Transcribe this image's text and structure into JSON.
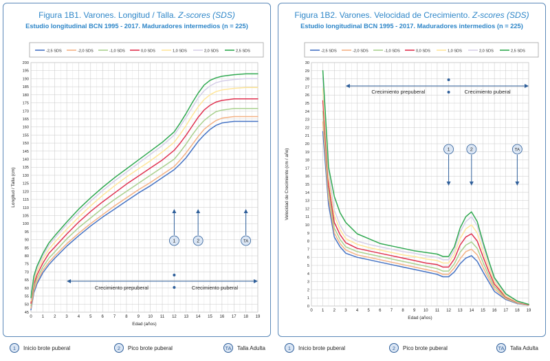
{
  "footer": {
    "items": [
      {
        "badge": "1",
        "label": "Inicio brote puberal"
      },
      {
        "badge": "2",
        "label": "Pico brote puberal"
      },
      {
        "badge": "TA",
        "label": "Talla Adulta"
      }
    ]
  },
  "chart_data": [
    {
      "type": "line",
      "title_prefix": "Figura 1B1. Varones. Longitud / Talla.",
      "title_italic": "Z-scores (SDS)",
      "subtitle_prefix": "Estudio longitudinal BCN 1995 - 2017. Maduradores intermedios (",
      "subtitle_bold": "n = 225",
      "subtitle_suffix": ")",
      "xlabel": "Edad (años)",
      "ylabel": "Longitud / Talla (cm)",
      "xlim": [
        0,
        19
      ],
      "ylim": [
        45,
        200
      ],
      "xticks": [
        0,
        1,
        2,
        3,
        4,
        5,
        6,
        7,
        8,
        9,
        10,
        11,
        12,
        13,
        14,
        15,
        16,
        17,
        18,
        19
      ],
      "yticks": [
        45,
        50,
        55,
        60,
        65,
        70,
        75,
        80,
        85,
        90,
        95,
        100,
        105,
        110,
        115,
        120,
        125,
        130,
        135,
        140,
        145,
        150,
        155,
        160,
        165,
        170,
        175,
        180,
        185,
        190,
        195,
        200
      ],
      "grid": true,
      "legend_position": "top",
      "x": [
        0,
        0.25,
        0.5,
        1,
        1.5,
        2,
        3,
        4,
        5,
        6,
        7,
        8,
        9,
        10,
        11,
        12,
        12.5,
        13,
        13.5,
        14,
        14.5,
        15,
        15.5,
        16,
        17,
        18,
        19
      ],
      "series": [
        {
          "name": "-2,5 SDS",
          "color": "#4472c4",
          "values": [
            46.5,
            57,
            62.5,
            69.5,
            74.5,
            78.5,
            86,
            92.5,
            98.5,
            104,
            109,
            114,
            119,
            123.5,
            128.5,
            133.5,
            137,
            141,
            146,
            151,
            155,
            158.5,
            161,
            162.5,
            163.5,
            163.5,
            163.5
          ]
        },
        {
          "name": "-2,0 SDS",
          "color": "#f4b183",
          "values": [
            47.5,
            58.5,
            64,
            71,
            76,
            80,
            87.5,
            94,
            100,
            105.5,
            111,
            116,
            121,
            125.5,
            130.5,
            135.5,
            139.5,
            144,
            149,
            154,
            158.5,
            161.5,
            164,
            165.5,
            166.5,
            166.5,
            166.5
          ]
        },
        {
          "name": "-1,0 SDS",
          "color": "#a9d18e",
          "values": [
            49,
            60.5,
            66,
            73,
            78.5,
            82.5,
            90.5,
            97.5,
            103.5,
            109.5,
            115,
            120,
            125,
            130,
            135,
            140,
            144.5,
            149.5,
            155,
            160,
            164,
            167,
            169.5,
            170.5,
            171.5,
            171.5,
            171.5
          ]
        },
        {
          "name": "0,0 SDS",
          "color": "#e0304e",
          "values": [
            50.5,
            62.5,
            68,
            75.5,
            81.5,
            85.5,
            93.5,
            101,
            107.5,
            113.5,
            119,
            124.5,
            129.5,
            134.5,
            139.5,
            145.5,
            150,
            155,
            160.5,
            166,
            170.5,
            173.5,
            175.5,
            176.5,
            177.5,
            177.5,
            177.5
          ]
        },
        {
          "name": "1,0 SDS",
          "color": "#ffe699",
          "values": [
            52,
            64.5,
            70,
            78,
            84,
            88.5,
            96.5,
            104,
            111,
            117.5,
            123.5,
            129,
            134,
            139,
            144.5,
            150.5,
            155.5,
            161,
            167,
            172.5,
            177,
            180,
            182,
            183,
            184,
            184.5,
            184.5
          ]
        },
        {
          "name": "2,0 SDS",
          "color": "#d6cfe8",
          "values": [
            53,
            66,
            72,
            80,
            86.5,
            91,
            99.5,
            107,
            114,
            120.5,
            126.5,
            132,
            137.5,
            143,
            148.5,
            155,
            160.5,
            166,
            172,
            178,
            182.5,
            185.5,
            187.5,
            188.5,
            189.5,
            190,
            190
          ]
        },
        {
          "name": "2,5 SDS",
          "color": "#2ea84f",
          "values": [
            54,
            67.5,
            73.5,
            81.5,
            88,
            92.5,
            101,
            109,
            116,
            122.5,
            128.5,
            134,
            139.5,
            145,
            150.5,
            157,
            162.5,
            168.5,
            175,
            181,
            186,
            189,
            190.5,
            191.5,
            192.5,
            193,
            193
          ]
        }
      ],
      "growth_phases": {
        "prepuberal": "Crecimiento prepuberal",
        "puberal": "Crecimiento puberal"
      },
      "markers": [
        {
          "label": "1",
          "x": 12
        },
        {
          "label": "2",
          "x": 14
        },
        {
          "label": "TA",
          "x": 18
        }
      ]
    },
    {
      "type": "line",
      "title_prefix": "Figura 1B2. Varones. Velocidad de Crecimiento.",
      "title_italic": "Z-scores (SDS)",
      "subtitle_prefix": "Estudio longitudinal BCN 1995 - 2017. Maduradores intermedios (",
      "subtitle_bold": "n = 225",
      "subtitle_suffix": ")",
      "xlabel": "Edad (años)",
      "ylabel": "Velocidad de Crecimiento (cm / año)",
      "xlim": [
        0,
        19
      ],
      "ylim": [
        0,
        30
      ],
      "xticks": [
        0,
        1,
        2,
        3,
        4,
        5,
        6,
        7,
        8,
        9,
        10,
        11,
        12,
        13,
        14,
        15,
        16,
        17,
        18,
        19
      ],
      "yticks": [
        0,
        1,
        2,
        3,
        4,
        5,
        6,
        7,
        8,
        9,
        10,
        11,
        12,
        13,
        14,
        15,
        16,
        17,
        18,
        19,
        20,
        21,
        22,
        23,
        24,
        25,
        26,
        27,
        28,
        29,
        30
      ],
      "grid": true,
      "legend_position": "top",
      "x": [
        1,
        1.5,
        2,
        2.5,
        3,
        4,
        5,
        6,
        7,
        8,
        9,
        10,
        11,
        11.5,
        12,
        12.5,
        13,
        13.5,
        14,
        14.5,
        15,
        15.5,
        16,
        17,
        18,
        19
      ],
      "series": [
        {
          "name": "-2,5 SDS",
          "color": "#4472c4",
          "values": [
            21.5,
            12.5,
            8.5,
            7.3,
            6.5,
            6,
            5.7,
            5.4,
            5.1,
            4.8,
            4.5,
            4.2,
            3.9,
            3.6,
            3.6,
            4.2,
            5.2,
            5.9,
            6.2,
            5.5,
            4.2,
            3,
            1.8,
            0.8,
            0.3,
            0.1
          ]
        },
        {
          "name": "-2,0 SDS",
          "color": "#f4b183",
          "values": [
            22.7,
            13.3,
            9,
            7.7,
            6.9,
            6.3,
            6,
            5.7,
            5.4,
            5.1,
            4.8,
            4.5,
            4.2,
            3.9,
            3.9,
            4.7,
            5.8,
            6.7,
            7,
            6.3,
            4.8,
            3.4,
            2.1,
            0.9,
            0.35,
            0.1
          ]
        },
        {
          "name": "-1,0 SDS",
          "color": "#a9d18e",
          "values": [
            24,
            14.1,
            9.6,
            8.2,
            7.3,
            6.7,
            6.4,
            6.1,
            5.8,
            5.5,
            5.2,
            4.9,
            4.6,
            4.3,
            4.3,
            5.2,
            6.6,
            7.5,
            7.9,
            7.1,
            5.4,
            3.8,
            2.4,
            1,
            0.4,
            0.15
          ]
        },
        {
          "name": "0,0 SDS",
          "color": "#e0304e",
          "values": [
            25.3,
            14.9,
            10.3,
            8.8,
            7.8,
            7.1,
            6.8,
            6.5,
            6.2,
            5.9,
            5.6,
            5.3,
            5.1,
            4.8,
            4.8,
            5.8,
            7.5,
            8.5,
            8.9,
            8,
            6.1,
            4.3,
            2.7,
            1.1,
            0.45,
            0.15
          ]
        },
        {
          "name": "1,0 SDS",
          "color": "#ffe699",
          "values": [
            26.8,
            15.8,
            11.1,
            9.4,
            8.3,
            7.6,
            7.2,
            6.9,
            6.6,
            6.3,
            6.1,
            5.8,
            5.6,
            5.3,
            5.3,
            6.4,
            8.3,
            9.5,
            10,
            9,
            6.8,
            4.8,
            3,
            1.2,
            0.5,
            0.2
          ]
        },
        {
          "name": "2,0 SDS",
          "color": "#d6cfe8",
          "values": [
            28.2,
            16.6,
            11.8,
            10,
            8.8,
            8,
            7.6,
            7.3,
            7,
            6.7,
            6.5,
            6.2,
            6,
            5.7,
            5.7,
            6.9,
            9.1,
            10.4,
            11,
            9.9,
            7.5,
            5.3,
            3.3,
            1.4,
            0.55,
            0.2
          ]
        },
        {
          "name": "2,5 SDS",
          "color": "#2ea84f",
          "values": [
            29,
            17.1,
            13.5,
            11.5,
            10.3,
            8.9,
            8.3,
            7.7,
            7.4,
            7.1,
            6.8,
            6.6,
            6.4,
            6.1,
            6.1,
            7.3,
            9.6,
            11,
            11.6,
            10.4,
            7.9,
            5.6,
            3.5,
            1.5,
            0.6,
            0.2
          ]
        }
      ],
      "growth_phases": {
        "prepuberal": "Crecimiento prepuberal",
        "puberal": "Crecimiento puberal"
      },
      "markers": [
        {
          "label": "1",
          "x": 12
        },
        {
          "label": "2",
          "x": 14
        },
        {
          "label": "TA",
          "x": 18
        }
      ]
    }
  ]
}
